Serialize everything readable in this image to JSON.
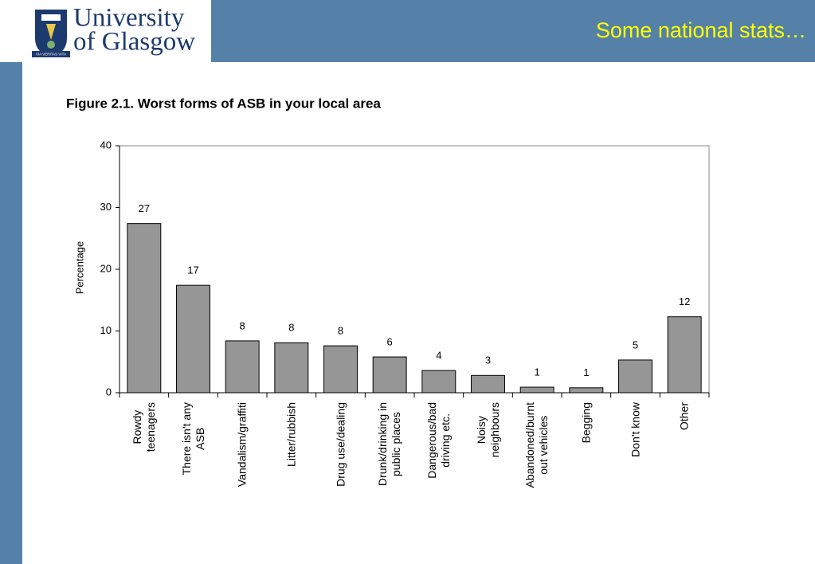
{
  "header": {
    "logo_line1": "University",
    "logo_line2": "of Glasgow",
    "motto": "VIA VERITAS VITA",
    "title": "Some national stats…"
  },
  "chart_data": {
    "type": "bar",
    "title": "Figure 2.1. Worst forms of ASB in your local area",
    "y_label": "Percentage",
    "categories": [
      "Rowdy\nteenagers",
      "There isn't any\nASB",
      "Vandalism/graffiti",
      "Litter/rubbish",
      "Drug use/dealing",
      "Drunk/drinking in\npublic places",
      "Dangerous/bad\ndriving etc.",
      "Noisy\nneighbours",
      "Abandoned/burnt\nout vehicles",
      "Begging",
      "Don't know",
      "Other"
    ],
    "values": [
      27.4,
      17.4,
      8.4,
      8.1,
      7.6,
      5.8,
      3.6,
      2.8,
      0.9,
      0.8,
      5.3,
      12.3
    ],
    "value_labels": [
      "27",
      "17",
      "8",
      "8",
      "8",
      "6",
      "4",
      "3",
      "1",
      "1",
      "5",
      "12"
    ],
    "color": "#969696",
    "ylim": [
      0,
      40
    ],
    "yticks": [
      0,
      10,
      20,
      30,
      40
    ],
    "grid": false
  }
}
